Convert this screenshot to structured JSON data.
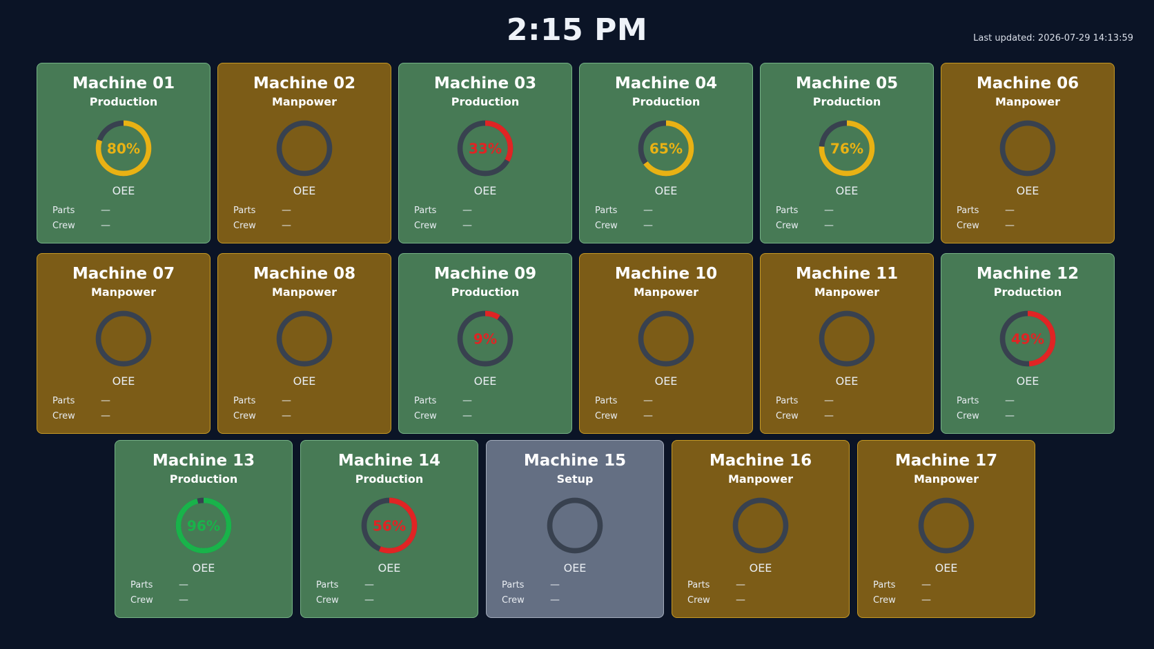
{
  "header": {
    "clock": "2:15 PM",
    "last_updated": "Last updated: 2026-07-29 14:13:59"
  },
  "labels": {
    "oee": "OEE",
    "parts": "Parts",
    "crew": "Crew"
  },
  "colors": {
    "production_bg": "#477a55",
    "manpower_bg": "#7c5c17",
    "setup_bg": "#646f83",
    "gauge_track": "#38414f",
    "gauge_yellow": "#e9b214",
    "gauge_red": "#e02424",
    "gauge_green": "#19b34a"
  },
  "machines": [
    {
      "name": "Machine 01",
      "status": "Production",
      "oee": "80%",
      "oee_value": 80,
      "color": "yellow",
      "parts": "—",
      "crew": "—"
    },
    {
      "name": "Machine 02",
      "status": "Manpower",
      "oee": "",
      "oee_value": null,
      "color": "",
      "parts": "—",
      "crew": "—"
    },
    {
      "name": "Machine 03",
      "status": "Production",
      "oee": "33%",
      "oee_value": 33,
      "color": "red",
      "parts": "—",
      "crew": "—"
    },
    {
      "name": "Machine 04",
      "status": "Production",
      "oee": "65%",
      "oee_value": 65,
      "color": "yellow",
      "parts": "—",
      "crew": "—"
    },
    {
      "name": "Machine 05",
      "status": "Production",
      "oee": "76%",
      "oee_value": 76,
      "color": "yellow",
      "parts": "—",
      "crew": "—"
    },
    {
      "name": "Machine 06",
      "status": "Manpower",
      "oee": "",
      "oee_value": null,
      "color": "",
      "parts": "—",
      "crew": "—"
    },
    {
      "name": "Machine 07",
      "status": "Manpower",
      "oee": "",
      "oee_value": null,
      "color": "",
      "parts": "—",
      "crew": "—"
    },
    {
      "name": "Machine 08",
      "status": "Manpower",
      "oee": "",
      "oee_value": null,
      "color": "",
      "parts": "—",
      "crew": "—"
    },
    {
      "name": "Machine 09",
      "status": "Production",
      "oee": "9%",
      "oee_value": 9,
      "color": "red",
      "parts": "—",
      "crew": "—"
    },
    {
      "name": "Machine 10",
      "status": "Manpower",
      "oee": "",
      "oee_value": null,
      "color": "",
      "parts": "—",
      "crew": "—"
    },
    {
      "name": "Machine 11",
      "status": "Manpower",
      "oee": "",
      "oee_value": null,
      "color": "",
      "parts": "—",
      "crew": "—"
    },
    {
      "name": "Machine 12",
      "status": "Production",
      "oee": "49%",
      "oee_value": 49,
      "color": "red",
      "parts": "—",
      "crew": "—"
    },
    {
      "name": "Machine 13",
      "status": "Production",
      "oee": "96%",
      "oee_value": 96,
      "color": "green",
      "parts": "—",
      "crew": "—"
    },
    {
      "name": "Machine 14",
      "status": "Production",
      "oee": "56%",
      "oee_value": 56,
      "color": "red",
      "parts": "—",
      "crew": "—"
    },
    {
      "name": "Machine 15",
      "status": "Setup",
      "oee": "",
      "oee_value": null,
      "color": "",
      "parts": "—",
      "crew": "—"
    },
    {
      "name": "Machine 16",
      "status": "Manpower",
      "oee": "",
      "oee_value": null,
      "color": "",
      "parts": "—",
      "crew": "—"
    },
    {
      "name": "Machine 17",
      "status": "Manpower",
      "oee": "",
      "oee_value": null,
      "color": "",
      "parts": "—",
      "crew": "—"
    }
  ]
}
